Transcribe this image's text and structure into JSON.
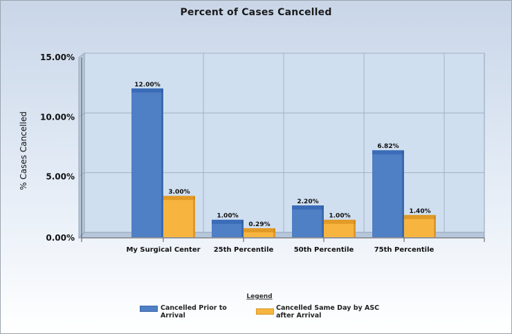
{
  "chart_data": {
    "type": "bar",
    "title": "Percent of Cases Cancelled",
    "xlabel": "",
    "ylabel": "% Cases Cancelled",
    "categories": [
      "My Surgical Center",
      "25th Percentile",
      "50th Percentile",
      "75th Percentile"
    ],
    "series": [
      {
        "name": "Cancelled Prior to Arrival",
        "color": "#4f7fc4",
        "values": [
          12.0,
          1.0,
          2.2,
          6.82
        ],
        "labels": [
          "12.00%",
          "1.00%",
          "2.20%",
          "6.82%"
        ]
      },
      {
        "name": "Cancelled Same Day by ASC after Arrival",
        "color": "#f7b540",
        "values": [
          3.0,
          0.29,
          1.0,
          1.4
        ],
        "labels": [
          "3.00%",
          "0.29%",
          "1.00%",
          "1.40%"
        ]
      }
    ],
    "yticks": [
      {
        "value": 0,
        "label": "0.00%"
      },
      {
        "value": 5,
        "label": "5.00%"
      },
      {
        "value": 10,
        "label": "10.00%"
      },
      {
        "value": 15,
        "label": "15.00%"
      }
    ],
    "ylim": [
      0,
      15
    ],
    "grid": true,
    "legend_title": "Legend",
    "legend_position": "bottom-center"
  }
}
